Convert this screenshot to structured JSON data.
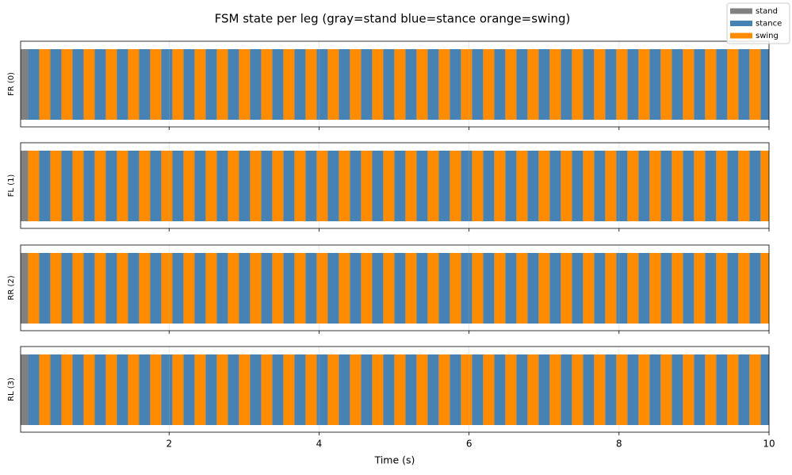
{
  "chart_data": {
    "type": "timeline",
    "title": "FSM state per leg  (gray=stand  blue=stance  orange=swing)",
    "xlabel": "Time (s)",
    "xlim": [
      0.02,
      10
    ],
    "xticks": [
      2,
      4,
      6,
      8,
      10
    ],
    "grid": true,
    "state_names": [
      "stand",
      "stance",
      "swing"
    ],
    "state_colors": [
      "#808080",
      "#4682b4",
      "#ff8c00"
    ],
    "legend": "upper right",
    "x": [
      0.02,
      0.12,
      0.268,
      0.416,
      0.564,
      0.712,
      0.86,
      1.008,
      1.156,
      1.304,
      1.452,
      1.6,
      1.748,
      1.896,
      2.044,
      2.192,
      2.34,
      2.488,
      2.636,
      2.784,
      2.932,
      3.08,
      3.228,
      3.376,
      3.524,
      3.672,
      3.82,
      3.968,
      4.116,
      4.264,
      4.412,
      4.56,
      4.708,
      4.856,
      5.004,
      5.152,
      5.3,
      5.448,
      5.596,
      5.744,
      5.892,
      6.04,
      6.188,
      6.336,
      6.484,
      6.632,
      6.78,
      6.928,
      7.076,
      7.224,
      7.372,
      7.52,
      7.668,
      7.816,
      7.964,
      8.112,
      8.26,
      8.408,
      8.556,
      8.704,
      8.852,
      9.0,
      9.148,
      9.296,
      9.444,
      9.592,
      9.74,
      9.888
    ],
    "rows": [
      {
        "label": "FR (0)",
        "states": [
          0,
          1,
          2,
          1,
          2,
          1,
          2,
          1,
          2,
          1,
          2,
          1,
          2,
          1,
          2,
          1,
          2,
          1,
          2,
          1,
          2,
          1,
          2,
          1,
          2,
          1,
          2,
          1,
          2,
          1,
          2,
          1,
          2,
          1,
          2,
          1,
          2,
          1,
          2,
          1,
          2,
          1,
          2,
          1,
          2,
          1,
          2,
          1,
          2,
          1,
          2,
          1,
          2,
          1,
          2,
          1,
          2,
          1,
          2,
          1,
          2,
          1,
          2,
          1,
          2,
          1,
          2,
          1
        ]
      },
      {
        "label": "FL (1)",
        "states": [
          0,
          2,
          1,
          2,
          1,
          2,
          1,
          2,
          1,
          2,
          1,
          2,
          1,
          2,
          1,
          2,
          1,
          2,
          1,
          2,
          1,
          2,
          1,
          2,
          1,
          2,
          1,
          2,
          1,
          2,
          1,
          2,
          1,
          2,
          1,
          2,
          1,
          2,
          1,
          2,
          1,
          2,
          1,
          2,
          1,
          2,
          1,
          2,
          1,
          2,
          1,
          2,
          1,
          2,
          1,
          2,
          1,
          2,
          1,
          2,
          1,
          2,
          1,
          2,
          1,
          2,
          1,
          2
        ]
      },
      {
        "label": "RR (2)",
        "states": [
          0,
          2,
          1,
          2,
          1,
          2,
          1,
          2,
          1,
          2,
          1,
          2,
          1,
          2,
          1,
          2,
          1,
          2,
          1,
          2,
          1,
          2,
          1,
          2,
          1,
          2,
          1,
          2,
          1,
          2,
          1,
          2,
          1,
          2,
          1,
          2,
          1,
          2,
          1,
          2,
          1,
          2,
          1,
          2,
          1,
          2,
          1,
          2,
          1,
          2,
          1,
          2,
          1,
          2,
          1,
          2,
          1,
          2,
          1,
          2,
          1,
          2,
          1,
          2,
          1,
          2,
          1,
          2
        ]
      },
      {
        "label": "RL (3)",
        "states": [
          0,
          1,
          2,
          1,
          2,
          1,
          2,
          1,
          2,
          1,
          2,
          1,
          2,
          1,
          2,
          1,
          2,
          1,
          2,
          1,
          2,
          1,
          2,
          1,
          2,
          1,
          2,
          1,
          2,
          1,
          2,
          1,
          2,
          1,
          2,
          1,
          2,
          1,
          2,
          1,
          2,
          1,
          2,
          1,
          2,
          1,
          2,
          1,
          2,
          1,
          2,
          1,
          2,
          1,
          2,
          1,
          2,
          1,
          2,
          1,
          2,
          1,
          2,
          1,
          2,
          1,
          2,
          1
        ]
      }
    ]
  }
}
